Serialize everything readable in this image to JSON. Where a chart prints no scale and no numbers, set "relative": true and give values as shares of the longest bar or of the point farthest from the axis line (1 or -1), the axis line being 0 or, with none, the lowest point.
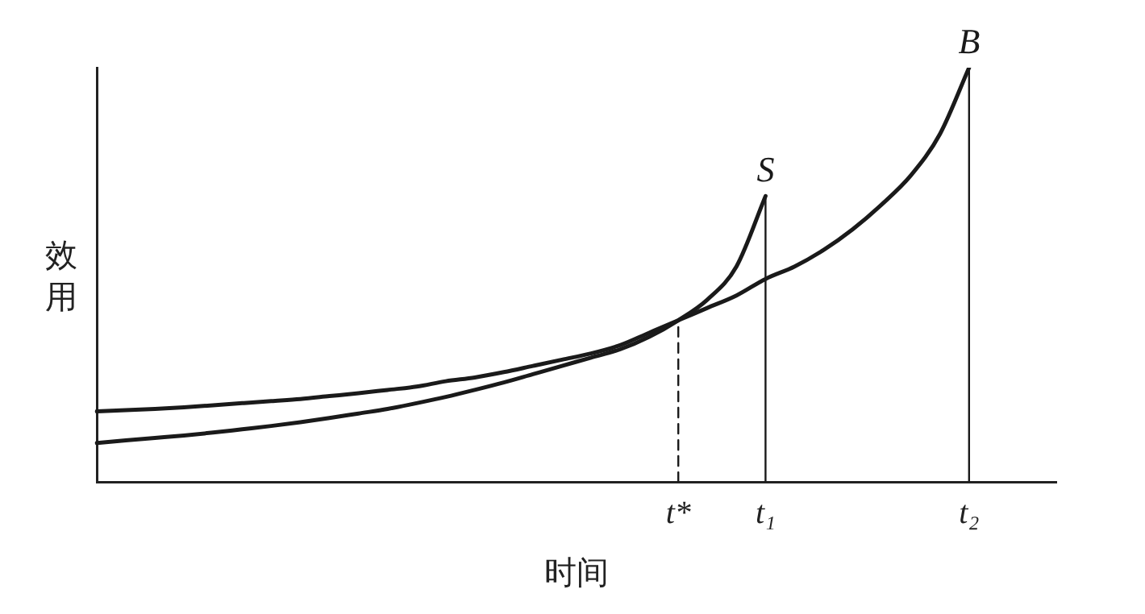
{
  "chart_data": {
    "type": "line",
    "relative": true,
    "xlabel": "时间",
    "ylabel": "效用",
    "categories": [
      null,
      null,
      null,
      null,
      null,
      null,
      null,
      null,
      null,
      null,
      null,
      null,
      null,
      null,
      null,
      null,
      null,
      null,
      null,
      null,
      "t*",
      null,
      null,
      "t₁",
      null,
      null,
      null,
      null,
      null,
      null,
      "t₂",
      null,
      null,
      null
    ],
    "series": [
      {
        "name": "S",
        "color": "#1a1a1a",
        "values": [
          0.094,
          0.1,
          0.106,
          0.112,
          0.119,
          0.127,
          0.135,
          0.144,
          0.154,
          0.165,
          0.176,
          0.19,
          0.205,
          0.222,
          0.24,
          0.26,
          0.28,
          0.3,
          0.32,
          0.35,
          0.39,
          0.44,
          0.52,
          0.69,
          null,
          null,
          null,
          null,
          null,
          null,
          null,
          null,
          null,
          null
        ]
      },
      {
        "name": "B",
        "color": "#1a1a1a",
        "values": [
          0.17,
          0.173,
          0.176,
          0.18,
          0.185,
          0.19,
          0.195,
          0.2,
          0.207,
          0.214,
          0.222,
          0.23,
          0.243,
          0.252,
          0.265,
          0.28,
          0.295,
          0.31,
          0.33,
          0.36,
          0.39,
          0.42,
          0.45,
          0.49,
          0.52,
          0.56,
          0.61,
          0.67,
          0.74,
          0.84,
          1,
          null,
          null,
          null
        ]
      },
      {
        "type": "line",
        "color": "#1a1a1a",
        "line_style": "dashed",
        "x": [
          "t*",
          "t*"
        ],
        "values": [
          0,
          0.39
        ]
      },
      {
        "type": "line",
        "color": "#1a1a1a",
        "line_style": "solid",
        "x": [
          "t₁",
          "t₁"
        ],
        "values": [
          0,
          0.69
        ]
      },
      {
        "type": "line",
        "color": "#1a1a1a",
        "line_style": "solid",
        "x": [
          "t₂",
          "t₂"
        ],
        "values": [
          0,
          1
        ]
      }
    ],
    "legend": false,
    "grid": false,
    "marker": "none"
  }
}
